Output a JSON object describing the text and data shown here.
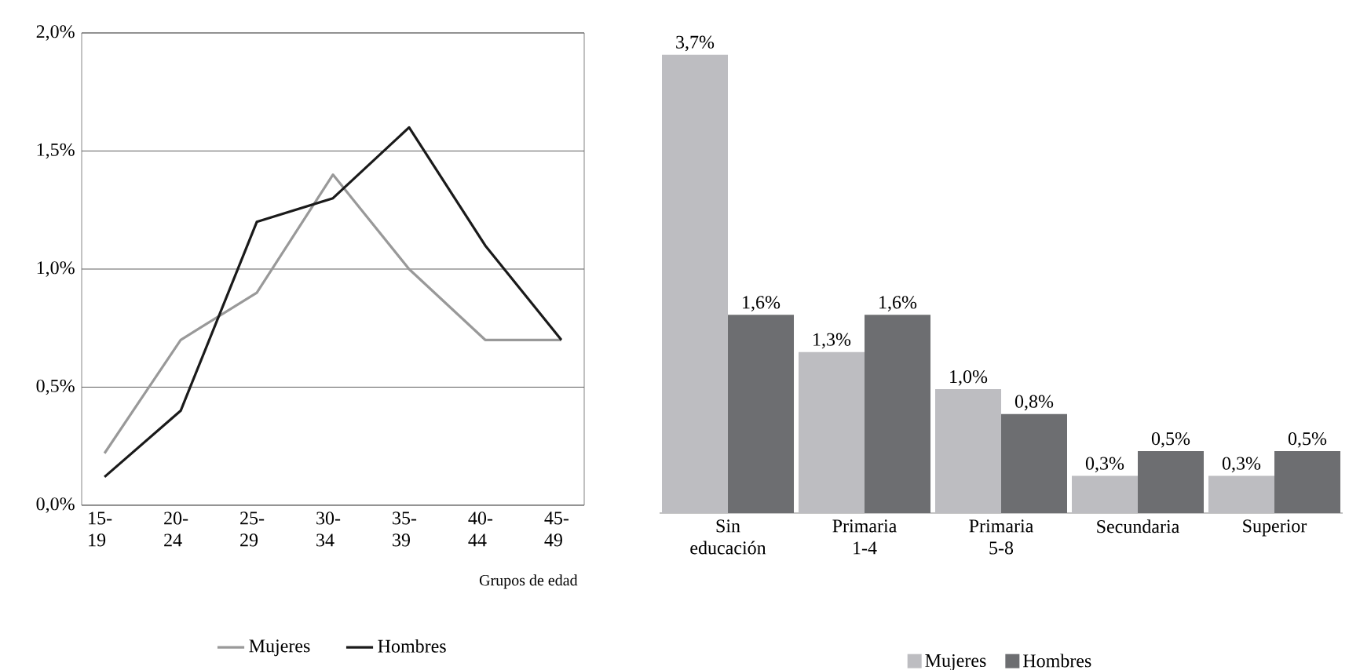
{
  "chart_data": [
    {
      "type": "line",
      "categories": [
        "15- 19",
        "20- 24",
        "25- 29",
        "30- 34",
        "35- 39",
        "40- 44",
        "45- 49"
      ],
      "series": [
        {
          "name": "Mujeres",
          "color": "#999999",
          "values": [
            0.22,
            0.7,
            0.9,
            1.4,
            1.0,
            0.7,
            0.7
          ]
        },
        {
          "name": "Hombres",
          "color": "#1a1a1a",
          "values": [
            0.12,
            0.4,
            1.2,
            1.3,
            1.6,
            1.1,
            0.7
          ]
        }
      ],
      "ylim": [
        0,
        2
      ],
      "yticks": [
        {
          "value": 0,
          "label": "0,0%"
        },
        {
          "value": 0.5,
          "label": "0,5%"
        },
        {
          "value": 1,
          "label": "1,0%"
        },
        {
          "value": 1.5,
          "label": "1,5%"
        },
        {
          "value": 2,
          "label": "2,0%"
        }
      ],
      "grid": "y",
      "legend": "bottom",
      "xlabel": "Grupos de edad"
    },
    {
      "type": "bar",
      "categories": [
        "Sin educación",
        "Primaria 1-4",
        "Primaria 5-8",
        "Secundaria",
        "Superior"
      ],
      "series": [
        {
          "name": "Mujeres",
          "color": "#bdbdc1",
          "values": [
            3.7,
            1.3,
            1.0,
            0.3,
            0.3
          ],
          "value_labels": [
            "3,7%",
            "1,3%",
            "1,0%",
            "0,3%",
            "0,3%"
          ]
        },
        {
          "name": "Hombres",
          "color": "#6d6e71",
          "values": [
            1.6,
            1.6,
            0.8,
            0.5,
            0.5
          ],
          "value_labels": [
            "1,6%",
            "1,6%",
            "0,8%",
            "0,5%",
            "0,5%"
          ]
        }
      ],
      "legend": "bottom",
      "tick_labels": "x"
    }
  ]
}
